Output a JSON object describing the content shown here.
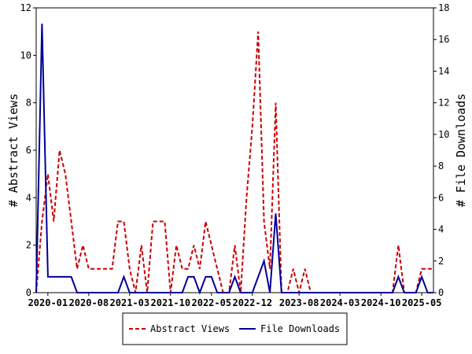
{
  "chart_data": {
    "type": "line",
    "ylabel_left": "# Abstract Views",
    "ylabel_right": "# File Downloads",
    "ylim_left": [
      0,
      12
    ],
    "ylim_right": [
      0,
      18
    ],
    "yticks_left": [
      0,
      2,
      4,
      6,
      8,
      10,
      12
    ],
    "yticks_right": [
      0,
      2,
      4,
      6,
      8,
      10,
      12,
      14,
      16,
      18
    ],
    "xlim": [
      "2019-11",
      "2025-07"
    ],
    "xticks": [
      "2020-01",
      "2020-08",
      "2021-03",
      "2021-10",
      "2022-05",
      "2022-12",
      "2023-08",
      "2024-03",
      "2024-10",
      "2025-05"
    ],
    "grid": false,
    "legend_position": "bottom-center",
    "series": [
      {
        "name": "Abstract Views",
        "axis": "left",
        "color": "#cc0000",
        "dash": "dashed",
        "x": [
          "2019-11",
          "2019-12",
          "2020-01",
          "2020-02",
          "2020-03",
          "2020-04",
          "2020-05",
          "2020-06",
          "2020-07",
          "2020-08",
          "2020-09",
          "2020-10",
          "2020-11",
          "2020-12",
          "2021-01",
          "2021-02",
          "2021-03",
          "2021-04",
          "2021-05",
          "2021-06",
          "2021-07",
          "2021-08",
          "2021-09",
          "2021-10",
          "2021-11",
          "2021-12",
          "2022-01",
          "2022-02",
          "2022-03",
          "2022-04",
          "2022-05",
          "2022-06",
          "2022-07",
          "2022-08",
          "2022-09",
          "2022-10",
          "2022-11",
          "2022-12",
          "2023-01",
          "2023-02",
          "2023-03",
          "2023-04",
          "2023-05",
          "2023-06",
          "2023-07",
          "2023-08",
          "2023-09",
          "2023-10",
          "2023-11",
          "2023-12",
          "2024-01",
          "2024-02",
          "2024-03",
          "2024-04",
          "2024-05",
          "2024-06",
          "2024-07",
          "2024-08",
          "2024-09",
          "2024-10",
          "2024-11",
          "2024-12",
          "2025-01",
          "2025-02",
          "2025-03",
          "2025-04",
          "2025-05",
          "2025-06",
          "2025-07"
        ],
        "values": [
          0,
          3,
          5,
          3,
          6,
          5,
          3,
          1,
          2,
          1,
          1,
          1,
          1,
          1,
          3,
          3,
          1,
          0,
          2,
          0,
          3,
          3,
          3,
          0,
          2,
          1,
          1,
          2,
          1,
          3,
          2,
          1,
          0,
          0,
          2,
          0,
          4,
          7,
          11,
          3,
          1,
          8,
          0,
          0,
          1,
          0,
          1,
          0,
          0,
          0,
          0,
          0,
          0,
          0,
          0,
          0,
          0,
          0,
          0,
          0,
          0,
          0,
          2,
          0,
          0,
          0,
          1,
          1,
          1
        ]
      },
      {
        "name": "File Downloads",
        "axis": "right",
        "color": "#000099",
        "dash": "solid",
        "x": [
          "2019-11",
          "2019-12",
          "2020-01",
          "2020-02",
          "2020-03",
          "2020-04",
          "2020-05",
          "2020-06",
          "2020-07",
          "2020-08",
          "2020-09",
          "2020-10",
          "2020-11",
          "2020-12",
          "2021-01",
          "2021-02",
          "2021-03",
          "2021-04",
          "2021-05",
          "2021-06",
          "2021-07",
          "2021-08",
          "2021-09",
          "2021-10",
          "2021-11",
          "2021-12",
          "2022-01",
          "2022-02",
          "2022-03",
          "2022-04",
          "2022-05",
          "2022-06",
          "2022-07",
          "2022-08",
          "2022-09",
          "2022-10",
          "2022-11",
          "2022-12",
          "2023-01",
          "2023-02",
          "2023-03",
          "2023-04",
          "2023-05",
          "2023-06",
          "2023-07",
          "2023-08",
          "2023-09",
          "2023-10",
          "2023-11",
          "2023-12",
          "2024-01",
          "2024-02",
          "2024-03",
          "2024-04",
          "2024-05",
          "2024-06",
          "2024-07",
          "2024-08",
          "2024-09",
          "2024-10",
          "2024-11",
          "2024-12",
          "2025-01",
          "2025-02",
          "2025-03",
          "2025-04",
          "2025-05",
          "2025-06",
          "2025-07"
        ],
        "values": [
          0,
          17,
          1,
          1,
          1,
          1,
          1,
          0,
          0,
          0,
          0,
          0,
          0,
          0,
          0,
          1,
          0,
          0,
          0,
          0,
          0,
          0,
          0,
          0,
          0,
          0,
          1,
          1,
          0,
          1,
          1,
          0,
          0,
          0,
          1,
          0,
          0,
          0,
          1,
          2,
          0,
          5,
          0,
          0,
          0,
          0,
          0,
          0,
          0,
          0,
          0,
          0,
          0,
          0,
          0,
          0,
          0,
          0,
          0,
          0,
          0,
          0,
          1,
          0,
          0,
          0,
          1,
          0,
          0
        ]
      }
    ]
  }
}
